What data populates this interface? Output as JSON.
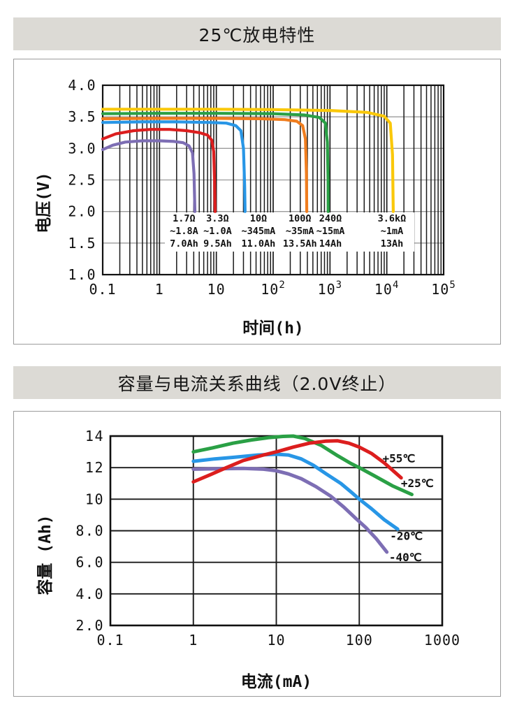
{
  "sections": [
    {
      "title": "25℃放电特性"
    },
    {
      "title": "容量与电流关系曲线（2.0V终止）"
    }
  ],
  "colors": {
    "titlebar_bg": "#dcdad5",
    "panel_border": "#9c9c9c",
    "grid_black": "#1a1a1a",
    "grid_gray": "#9b9b9b",
    "red": "#dc1e1e",
    "green": "#2aa045",
    "blue": "#2896e6",
    "purple": "#7d6eb4",
    "orange": "#f07d1e",
    "yellow": "#fac80a"
  },
  "chart_data": [
    {
      "type": "line",
      "title": "25℃放电特性",
      "xlabel": "时间(h)",
      "ylabel": "电压(V)",
      "x_scale": "log",
      "x_range": [
        0.1,
        100000
      ],
      "x_ticks": [
        {
          "v": 0.1,
          "label": "0.1"
        },
        {
          "v": 1,
          "label": "1"
        },
        {
          "v": 10,
          "label": "10"
        },
        {
          "v": 100,
          "label": "10^2"
        },
        {
          "v": 1000,
          "label": "10^3"
        },
        {
          "v": 10000,
          "label": "10^4"
        },
        {
          "v": 100000,
          "label": "10^5"
        }
      ],
      "y_range": [
        1.0,
        4.0
      ],
      "y_ticks": [
        {
          "v": 4.0,
          "label": "4.0"
        },
        {
          "v": 3.5,
          "label": "3.5"
        },
        {
          "v": 3.0,
          "label": "3.0"
        },
        {
          "v": 2.5,
          "label": "2.5"
        },
        {
          "v": 2.0,
          "label": "2.0"
        },
        {
          "v": 1.5,
          "label": "1.5"
        },
        {
          "v": 1.0,
          "label": "1.0"
        }
      ],
      "grid": {
        "x_minor": true,
        "v_color": "#1a1a1a",
        "h_color": "#9b9b9b"
      },
      "series": [
        {
          "id": "load-1_7ohm",
          "name": "1.7Ω ~1.8A 7.0Ah",
          "color": "#7d6eb4",
          "points": [
            [
              0.1,
              2.98
            ],
            [
              0.15,
              3.05
            ],
            [
              0.25,
              3.1
            ],
            [
              0.5,
              3.12
            ],
            [
              1,
              3.12
            ],
            [
              1.8,
              3.11
            ],
            [
              2.6,
              3.09
            ],
            [
              3.3,
              3.04
            ],
            [
              3.8,
              2.93
            ],
            [
              4.05,
              2.6
            ],
            [
              4.2,
              2.0
            ]
          ]
        },
        {
          "id": "load-3_3ohm",
          "name": "3.3Ω ~1.0A 9.5Ah",
          "color": "#dc1e1e",
          "points": [
            [
              0.1,
              3.15
            ],
            [
              0.17,
              3.23
            ],
            [
              0.35,
              3.28
            ],
            [
              0.7,
              3.3
            ],
            [
              1.5,
              3.3
            ],
            [
              3,
              3.28
            ],
            [
              5,
              3.25
            ],
            [
              7,
              3.21
            ],
            [
              8.3,
              3.13
            ],
            [
              9,
              2.95
            ],
            [
              9.3,
              2.5
            ],
            [
              9.5,
              2.0
            ]
          ]
        },
        {
          "id": "load-10ohm",
          "name": "10Ω ~345mA 11.0Ah",
          "color": "#2896e6",
          "points": [
            [
              0.1,
              3.41
            ],
            [
              0.5,
              3.42
            ],
            [
              2,
              3.42
            ],
            [
              8,
              3.41
            ],
            [
              15,
              3.4
            ],
            [
              22,
              3.36
            ],
            [
              27,
              3.28
            ],
            [
              30,
              3.0
            ],
            [
              31.5,
              2.4
            ],
            [
              32,
              2.0
            ]
          ]
        },
        {
          "id": "load-100ohm",
          "name": "100Ω ~35mA 13.5Ah",
          "color": "#f07d1e",
          "points": [
            [
              0.1,
              3.47
            ],
            [
              1,
              3.475
            ],
            [
              10,
              3.475
            ],
            [
              60,
              3.47
            ],
            [
              160,
              3.455
            ],
            [
              260,
              3.43
            ],
            [
              330,
              3.36
            ],
            [
              370,
              3.15
            ],
            [
              385,
              2.6
            ],
            [
              390,
              2.0
            ]
          ]
        },
        {
          "id": "load-240ohm",
          "name": "240Ω ~15mA 14Ah",
          "color": "#2aa045",
          "points": [
            [
              0.1,
              3.55
            ],
            [
              1,
              3.555
            ],
            [
              10,
              3.555
            ],
            [
              100,
              3.55
            ],
            [
              350,
              3.53
            ],
            [
              650,
              3.49
            ],
            [
              830,
              3.4
            ],
            [
              900,
              3.1
            ],
            [
              925,
              2.5
            ],
            [
              930,
              2.0
            ]
          ]
        },
        {
          "id": "load-3_6kohm",
          "name": "3.6kΩ ~1mA 13Ah",
          "color": "#fac80a",
          "points": [
            [
              0.1,
              3.62
            ],
            [
              1,
              3.62
            ],
            [
              10,
              3.62
            ],
            [
              100,
              3.615
            ],
            [
              1000,
              3.6
            ],
            [
              4500,
              3.57
            ],
            [
              9000,
              3.51
            ],
            [
              11500,
              3.4
            ],
            [
              12600,
              2.9
            ],
            [
              13000,
              2.0
            ]
          ]
        }
      ],
      "annotations": {
        "rows_v": [
          1.89,
          1.69,
          1.49
        ],
        "columns": [
          {
            "x": 2.7,
            "lines": [
              "1.7Ω",
              "~1.8A",
              "7.0Ah"
            ]
          },
          {
            "x": 10.5,
            "lines": [
              "3.3Ω",
              "~1.0A",
              "9.5Ah"
            ]
          },
          {
            "x": 55,
            "lines": [
              "10Ω",
              "~345mA",
              "11.0Ah"
            ]
          },
          {
            "x": 295,
            "lines": [
              "100Ω",
              "~35mA",
              "13.5Ah"
            ]
          },
          {
            "x": 1020,
            "lines": [
              "240Ω",
              "~15mA",
              "14Ah"
            ]
          },
          {
            "x": 12300,
            "lines": [
              "3.6kΩ",
              "~1mA",
              "13Ah"
            ]
          }
        ]
      }
    },
    {
      "type": "line",
      "title": "容量与电流关系曲线（2.0V终止）",
      "xlabel": "电流(mA)",
      "ylabel": "容量 (Ah)",
      "x_scale": "log",
      "x_range": [
        0.1,
        1000
      ],
      "x_ticks": [
        {
          "v": 0.1,
          "label": "0.1"
        },
        {
          "v": 1,
          "label": "1"
        },
        {
          "v": 10,
          "label": "10"
        },
        {
          "v": 100,
          "label": "100"
        },
        {
          "v": 1000,
          "label": "1000"
        }
      ],
      "y_range": [
        2.0,
        14.0
      ],
      "y_ticks": [
        {
          "v": 14,
          "label": "14"
        },
        {
          "v": 12,
          "label": "12"
        },
        {
          "v": 10,
          "label": "10"
        },
        {
          "v": 8,
          "label": "8.0"
        },
        {
          "v": 6,
          "label": "6.0"
        },
        {
          "v": 4,
          "label": "4.0"
        },
        {
          "v": 2,
          "label": "2.0"
        }
      ],
      "grid": {
        "x_minor": false,
        "v_color": "#1a1a1a",
        "h_color": "#1a1a1a"
      },
      "series": [
        {
          "id": "temp-minus40",
          "name": "-40℃",
          "color": "#7d6eb4",
          "points": [
            [
              1,
              11.9
            ],
            [
              2,
              11.93
            ],
            [
              4,
              11.95
            ],
            [
              7,
              11.9
            ],
            [
              10,
              11.8
            ],
            [
              14,
              11.6
            ],
            [
              20,
              11.3
            ],
            [
              30,
              10.8
            ],
            [
              45,
              10.2
            ],
            [
              65,
              9.5
            ],
            [
              90,
              8.8
            ],
            [
              120,
              8.2
            ],
            [
              160,
              7.5
            ],
            [
              215,
              6.65
            ]
          ]
        },
        {
          "id": "temp-minus20",
          "name": "-20℃",
          "color": "#2896e6",
          "points": [
            [
              1,
              12.4
            ],
            [
              1.8,
              12.55
            ],
            [
              3,
              12.65
            ],
            [
              6,
              12.8
            ],
            [
              10,
              12.85
            ],
            [
              14,
              12.8
            ],
            [
              20,
              12.55
            ],
            [
              28,
              12.15
            ],
            [
              40,
              11.6
            ],
            [
              60,
              11.0
            ],
            [
              80,
              10.45
            ],
            [
              100,
              10.0
            ],
            [
              140,
              9.4
            ],
            [
              200,
              8.7
            ],
            [
              290,
              8.1
            ]
          ]
        },
        {
          "id": "temp-plus25",
          "name": "+25℃",
          "color": "#2aa045",
          "points": [
            [
              1,
              13.0
            ],
            [
              1.7,
              13.25
            ],
            [
              3,
              13.55
            ],
            [
              5,
              13.75
            ],
            [
              8,
              13.9
            ],
            [
              12,
              13.98
            ],
            [
              16,
              14.0
            ],
            [
              22,
              13.85
            ],
            [
              35,
              13.4
            ],
            [
              55,
              12.75
            ],
            [
              80,
              12.25
            ],
            [
              100,
              12.0
            ],
            [
              150,
              11.5
            ],
            [
              250,
              10.85
            ],
            [
              430,
              10.3
            ]
          ]
        },
        {
          "id": "temp-plus55",
          "name": "+55℃",
          "color": "#dc1e1e",
          "points": [
            [
              1,
              11.1
            ],
            [
              1.6,
              11.55
            ],
            [
              2.5,
              12.0
            ],
            [
              4,
              12.45
            ],
            [
              7,
              12.8
            ],
            [
              10,
              13.0
            ],
            [
              16,
              13.3
            ],
            [
              25,
              13.55
            ],
            [
              40,
              13.68
            ],
            [
              55,
              13.7
            ],
            [
              75,
              13.55
            ],
            [
              100,
              13.3
            ],
            [
              140,
              12.9
            ],
            [
              200,
              12.3
            ],
            [
              320,
              11.35
            ]
          ]
        }
      ],
      "series_labels": [
        {
          "text": "+55℃",
          "x": 300,
          "y": 12.55
        },
        {
          "text": "+25℃",
          "x": 500,
          "y": 11.0
        },
        {
          "text": "-20℃",
          "x": 370,
          "y": 7.65
        },
        {
          "text": "-40℃",
          "x": 360,
          "y": 6.3
        }
      ]
    }
  ]
}
